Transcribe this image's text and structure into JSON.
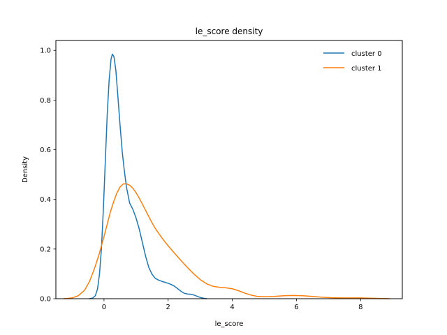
{
  "chart_data": {
    "type": "line",
    "title": "le_score density",
    "xlabel": "le_score",
    "ylabel": "Density",
    "xlim": [
      -1.5,
      9.3
    ],
    "ylim": [
      0,
      1.04
    ],
    "xticks": [
      0,
      2,
      4,
      6,
      8
    ],
    "yticks": [
      0.0,
      0.2,
      0.4,
      0.6,
      0.8,
      1.0
    ],
    "xtick_labels": [
      "0",
      "2",
      "4",
      "6",
      "8"
    ],
    "ytick_labels": [
      "0.0",
      "0.2",
      "0.4",
      "0.6",
      "0.8",
      "1.0"
    ],
    "grid": false,
    "legend_position": "top-right",
    "series": [
      {
        "name": "cluster 0",
        "color": "#1f77b4",
        "points": [
          [
            -0.45,
            0.0
          ],
          [
            -0.35,
            0.003
          ],
          [
            -0.27,
            0.012
          ],
          [
            -0.2,
            0.04
          ],
          [
            -0.14,
            0.1
          ],
          [
            -0.08,
            0.2
          ],
          [
            -0.02,
            0.36
          ],
          [
            0.04,
            0.55
          ],
          [
            0.1,
            0.74
          ],
          [
            0.16,
            0.88
          ],
          [
            0.22,
            0.965
          ],
          [
            0.26,
            0.985
          ],
          [
            0.31,
            0.975
          ],
          [
            0.37,
            0.92
          ],
          [
            0.43,
            0.82
          ],
          [
            0.5,
            0.7
          ],
          [
            0.57,
            0.59
          ],
          [
            0.63,
            0.52
          ],
          [
            0.7,
            0.45
          ],
          [
            0.8,
            0.385
          ],
          [
            0.9,
            0.36
          ],
          [
            1.0,
            0.325
          ],
          [
            1.1,
            0.28
          ],
          [
            1.2,
            0.225
          ],
          [
            1.3,
            0.17
          ],
          [
            1.4,
            0.125
          ],
          [
            1.5,
            0.098
          ],
          [
            1.6,
            0.082
          ],
          [
            1.7,
            0.075
          ],
          [
            1.8,
            0.07
          ],
          [
            1.9,
            0.066
          ],
          [
            2.0,
            0.062
          ],
          [
            2.1,
            0.057
          ],
          [
            2.2,
            0.05
          ],
          [
            2.3,
            0.04
          ],
          [
            2.4,
            0.03
          ],
          [
            2.5,
            0.022
          ],
          [
            2.6,
            0.019
          ],
          [
            2.7,
            0.018
          ],
          [
            2.8,
            0.015
          ],
          [
            2.9,
            0.01
          ],
          [
            3.0,
            0.005
          ],
          [
            3.1,
            0.002
          ],
          [
            3.2,
            0.0
          ]
        ]
      },
      {
        "name": "cluster 1",
        "color": "#ff7f0e",
        "points": [
          [
            -1.25,
            0.0
          ],
          [
            -1.0,
            0.003
          ],
          [
            -0.8,
            0.012
          ],
          [
            -0.6,
            0.035
          ],
          [
            -0.45,
            0.07
          ],
          [
            -0.3,
            0.12
          ],
          [
            -0.15,
            0.18
          ],
          [
            0.0,
            0.25
          ],
          [
            0.1,
            0.3
          ],
          [
            0.2,
            0.35
          ],
          [
            0.3,
            0.39
          ],
          [
            0.4,
            0.425
          ],
          [
            0.5,
            0.45
          ],
          [
            0.6,
            0.462
          ],
          [
            0.7,
            0.463
          ],
          [
            0.8,
            0.457
          ],
          [
            0.9,
            0.445
          ],
          [
            1.0,
            0.427
          ],
          [
            1.1,
            0.405
          ],
          [
            1.2,
            0.38
          ],
          [
            1.3,
            0.355
          ],
          [
            1.4,
            0.33
          ],
          [
            1.5,
            0.305
          ],
          [
            1.6,
            0.283
          ],
          [
            1.7,
            0.264
          ],
          [
            1.8,
            0.246
          ],
          [
            1.9,
            0.229
          ],
          [
            2.0,
            0.213
          ],
          [
            2.2,
            0.183
          ],
          [
            2.4,
            0.154
          ],
          [
            2.6,
            0.126
          ],
          [
            2.8,
            0.1
          ],
          [
            3.0,
            0.077
          ],
          [
            3.2,
            0.06
          ],
          [
            3.4,
            0.05
          ],
          [
            3.6,
            0.046
          ],
          [
            3.8,
            0.044
          ],
          [
            4.0,
            0.04
          ],
          [
            4.2,
            0.032
          ],
          [
            4.4,
            0.022
          ],
          [
            4.6,
            0.014
          ],
          [
            4.8,
            0.009
          ],
          [
            5.0,
            0.008
          ],
          [
            5.3,
            0.009
          ],
          [
            5.6,
            0.012
          ],
          [
            5.9,
            0.013
          ],
          [
            6.2,
            0.012
          ],
          [
            6.5,
            0.009
          ],
          [
            6.8,
            0.006
          ],
          [
            7.1,
            0.004
          ],
          [
            7.4,
            0.003
          ],
          [
            7.7,
            0.003
          ],
          [
            8.0,
            0.003
          ],
          [
            8.3,
            0.002
          ],
          [
            8.6,
            0.001
          ],
          [
            8.9,
            0.0
          ]
        ]
      }
    ]
  }
}
